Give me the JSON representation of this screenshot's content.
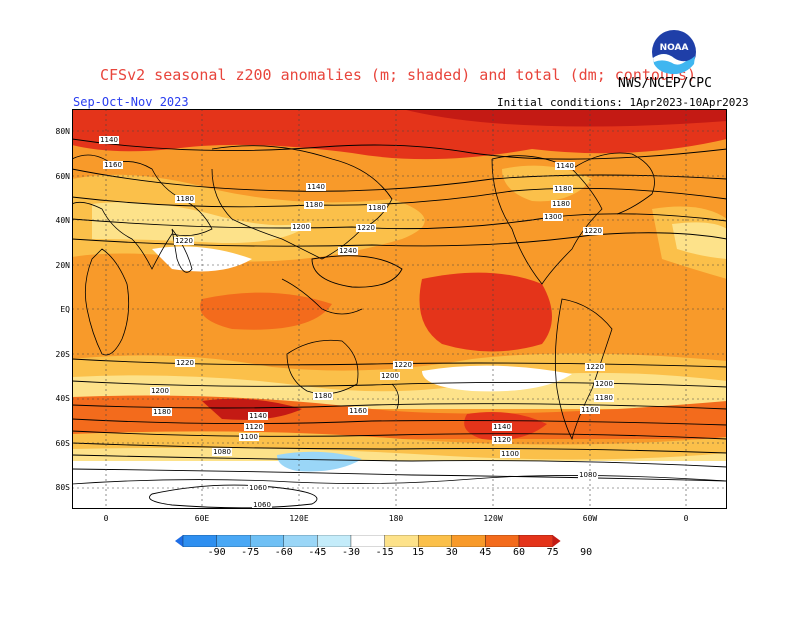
{
  "header": {
    "title": "CFSv2 seasonal z200 anomalies (m; shaded) and total (dm; contours)",
    "agency": "NWS/NCEP/CPC",
    "season": "Sep-Oct-Nov 2023",
    "initial_conditions": "Initial conditions: 1Apr2023-10Apr2023",
    "logo_text": "NOAA"
  },
  "axes": {
    "lat_labels": [
      "80N",
      "60N",
      "40N",
      "20N",
      "EQ",
      "20S",
      "40S",
      "60S",
      "80S"
    ],
    "lon_labels": [
      "0",
      "60E",
      "120E",
      "180",
      "120W",
      "60W",
      "0"
    ]
  },
  "colorbar": {
    "ticks": [
      "-90",
      "-75",
      "-60",
      "-45",
      "-30",
      "-15",
      "15",
      "30",
      "45",
      "60",
      "75",
      "90"
    ],
    "colors": [
      "#1e6ee6",
      "#2e8ff0",
      "#4aa8f5",
      "#6fc0f5",
      "#9ad6f7",
      "#c4ecfa",
      "#ffffff",
      "#fde28a",
      "#fbc04a",
      "#f89a2a",
      "#f36b1c",
      "#e4341a",
      "#c41a14"
    ]
  },
  "contour_labels": [
    {
      "text": "1140"
    },
    {
      "text": "1160"
    },
    {
      "text": "1180"
    },
    {
      "text": "1220"
    },
    {
      "text": "1140"
    },
    {
      "text": "1180"
    },
    {
      "text": "1180"
    },
    {
      "text": "1200"
    },
    {
      "text": "1220"
    },
    {
      "text": "1240"
    },
    {
      "text": "1140"
    },
    {
      "text": "1180"
    },
    {
      "text": "1180"
    },
    {
      "text": "1300"
    },
    {
      "text": "1220"
    },
    {
      "text": "1220"
    },
    {
      "text": "1200"
    },
    {
      "text": "1180"
    },
    {
      "text": "1140"
    },
    {
      "text": "1120"
    },
    {
      "text": "1100"
    },
    {
      "text": "1080"
    },
    {
      "text": "1180"
    },
    {
      "text": "1160"
    },
    {
      "text": "1220"
    },
    {
      "text": "1200"
    },
    {
      "text": "1140"
    },
    {
      "text": "1120"
    },
    {
      "text": "1100"
    },
    {
      "text": "1220"
    },
    {
      "text": "1200"
    },
    {
      "text": "1180"
    },
    {
      "text": "1160"
    },
    {
      "text": "1080"
    },
    {
      "text": "1060"
    },
    {
      "text": "1060"
    }
  ]
}
